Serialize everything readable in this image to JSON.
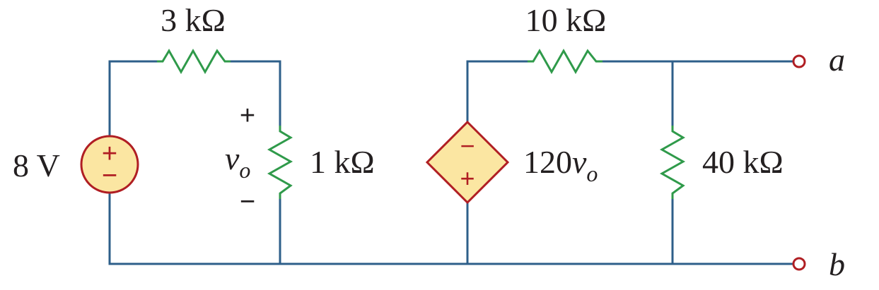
{
  "resistors": {
    "r_series": "3 kΩ",
    "r_load": "1 kΩ",
    "r_top_right": "10 kΩ",
    "r_shunt": "40 kΩ"
  },
  "sources": {
    "independent": {
      "value": "8 V",
      "plus": "+",
      "minus": "−"
    },
    "dependent": {
      "gain": "120",
      "variable": "v",
      "subscript": "o",
      "plus": "+",
      "minus": "−"
    }
  },
  "voltage_label": {
    "variable": "v",
    "subscript": "o",
    "plus": "+",
    "minus": "−"
  },
  "terminals": {
    "a": "a",
    "b": "b"
  },
  "colors": {
    "wire": "#2e5f8a",
    "resistor": "#2f9a4a",
    "source_fill": "#fbe6a2",
    "source_stroke": "#b01e23",
    "text": "#231f20"
  }
}
